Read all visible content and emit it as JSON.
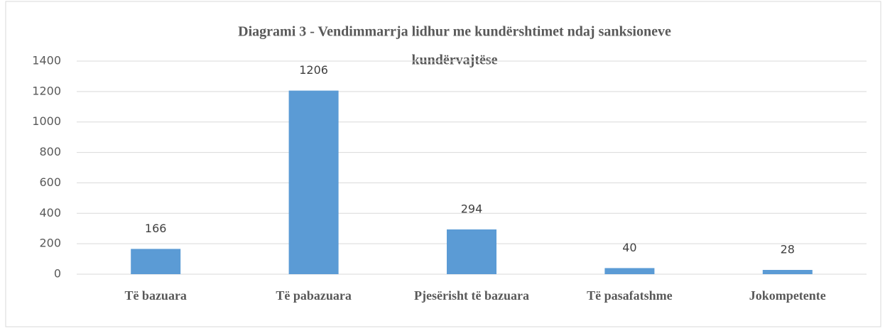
{
  "chart_data": {
    "type": "bar",
    "title": [
      "Diagrami 3 - Vendimmarrja lidhur me kundërshtimet ndaj sanksioneve",
      "kundërvajtëse"
    ],
    "categories": [
      "Të bazuara",
      "Të pabazuara",
      "Pjesërisht të bazuara",
      "Të pasafatshme",
      "Jokompetente"
    ],
    "values": [
      166,
      1206,
      294,
      40,
      28
    ],
    "color": "#5b9bd5",
    "ylim": [
      0,
      1400
    ],
    "yticks": [
      0,
      200,
      400,
      600,
      800,
      1000,
      1200,
      1400
    ],
    "grid": true
  }
}
